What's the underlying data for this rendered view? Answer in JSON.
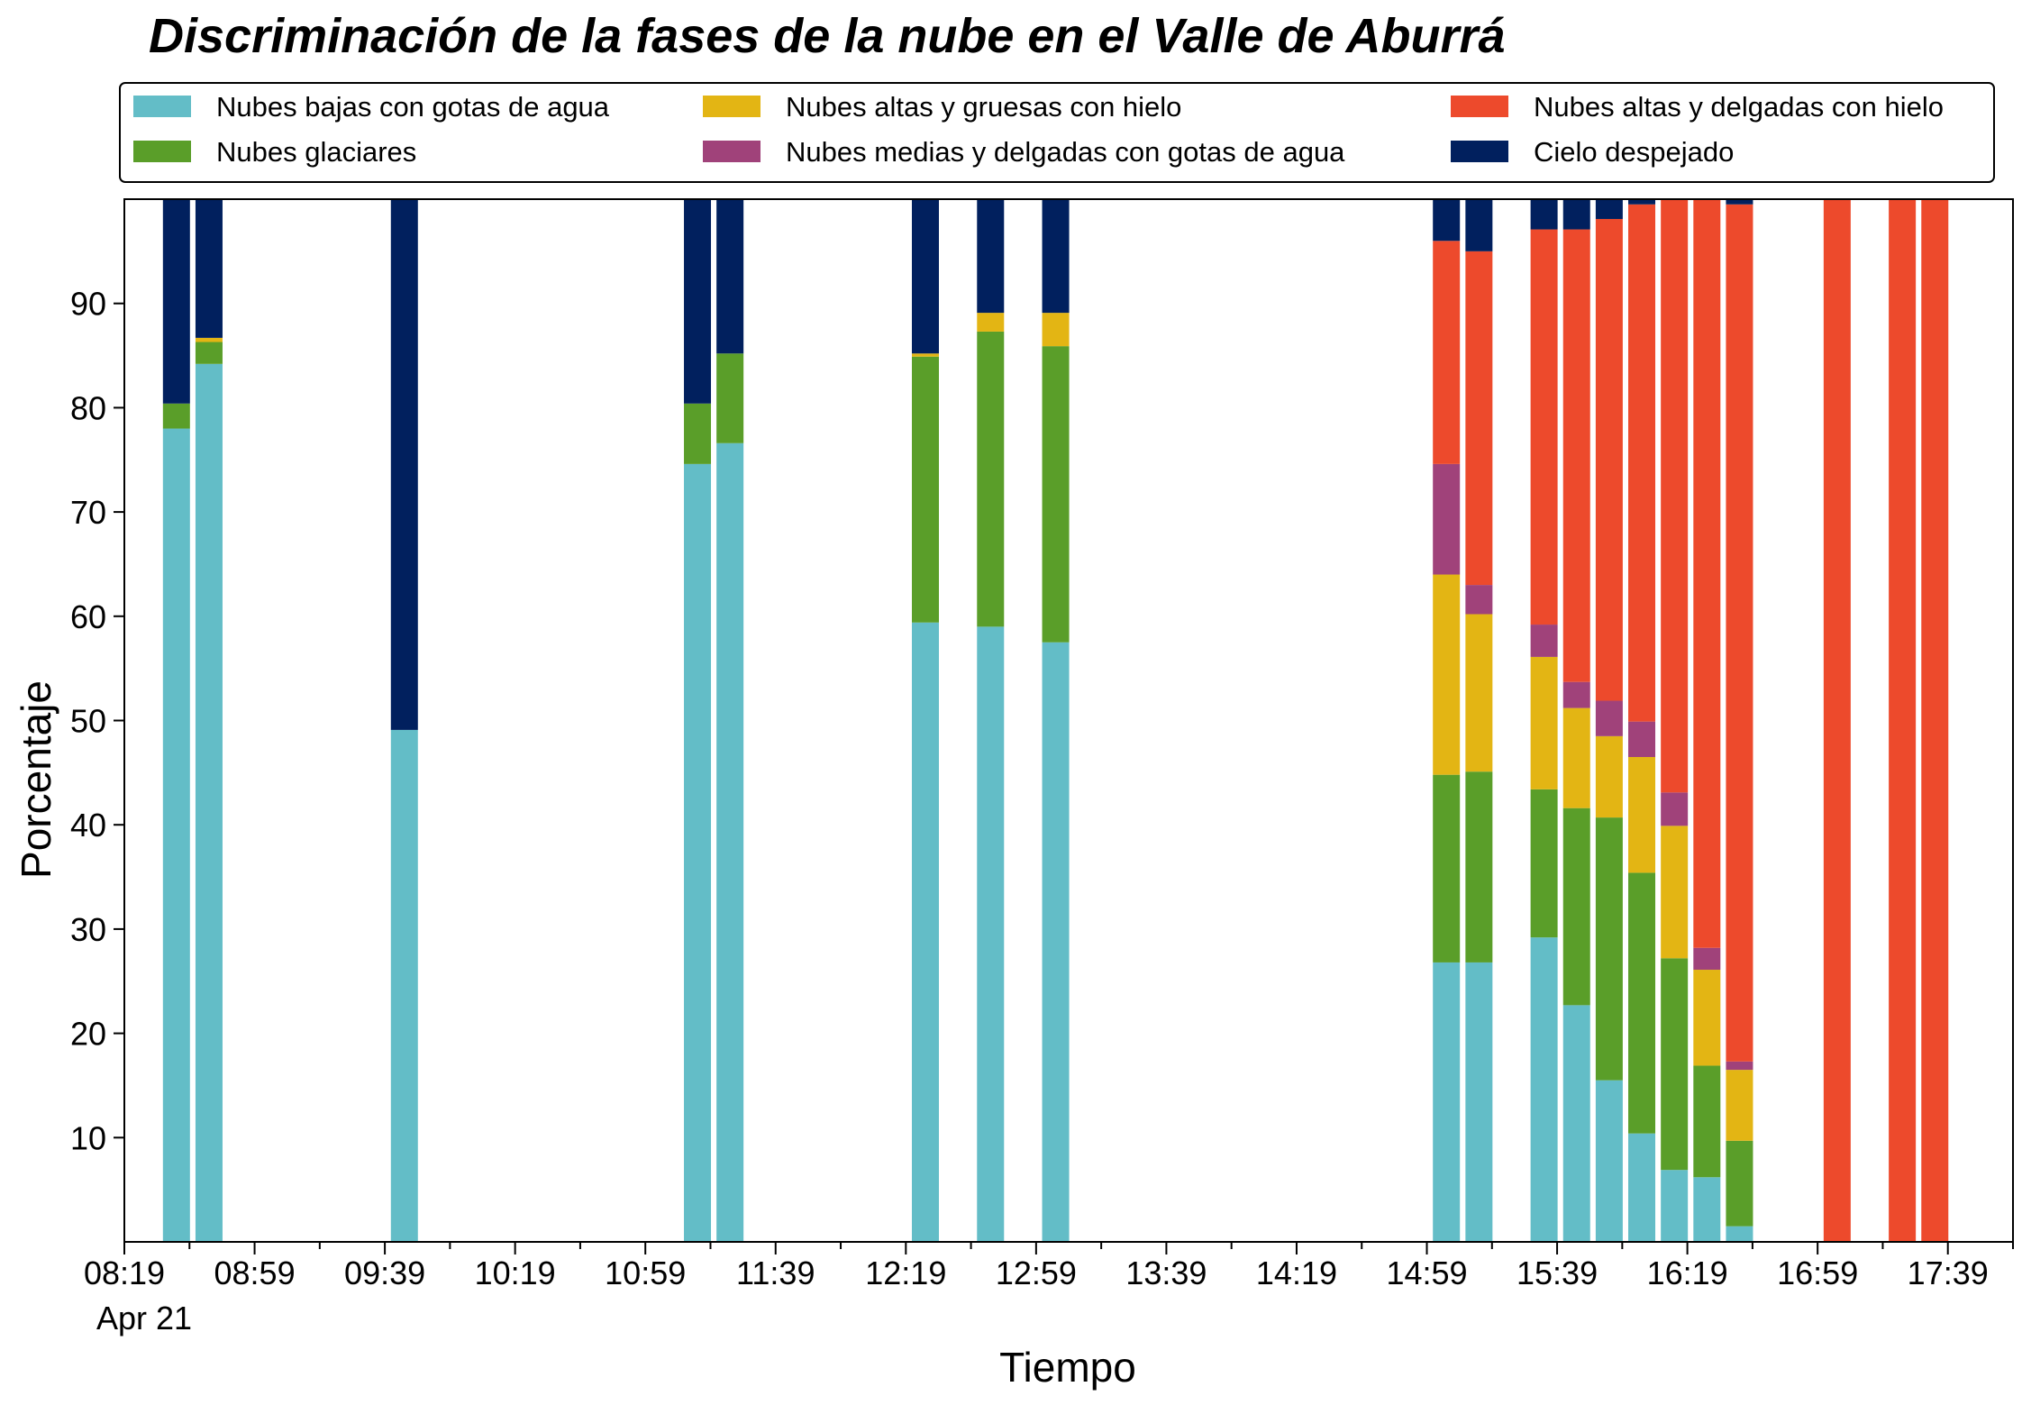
{
  "chart_data": {
    "type": "bar",
    "stacked": true,
    "title": "Discriminación de la fases de la nube en el Valle de Aburrá",
    "xlabel": "Tiempo",
    "ylabel": "Porcentaje",
    "ylim": [
      0,
      100
    ],
    "y_ticks": [
      10,
      20,
      30,
      40,
      50,
      60,
      70,
      80,
      90
    ],
    "x_date_label": "Apr 21",
    "x_range": [
      "08:19",
      "17:59"
    ],
    "x_tick_labels": [
      "08:19",
      "08:59",
      "09:39",
      "10:19",
      "10:59",
      "11:39",
      "12:19",
      "12:59",
      "13:39",
      "14:19",
      "14:59",
      "15:39",
      "16:19",
      "16:59",
      "17:39"
    ],
    "grid": false,
    "legend_position": "top",
    "series": [
      {
        "name": "Nubes bajas con gotas de agua",
        "color": "#63bdc7"
      },
      {
        "name": "Nubes glaciares",
        "color": "#5a9e29"
      },
      {
        "name": "Nubes altas y gruesas con hielo",
        "color": "#e3b514"
      },
      {
        "name": "Nubes medias y delgadas con gotas de agua",
        "color": "#a0427a"
      },
      {
        "name": "Nubes altas y delgadas con hielo",
        "color": "#ed4a2c"
      },
      {
        "name": "Cielo despejado",
        "color": "#01205e"
      }
    ],
    "bars": [
      {
        "x": "08:35",
        "values": [
          78,
          2.4,
          0,
          0,
          0,
          19.6
        ]
      },
      {
        "x": "08:45",
        "values": [
          84.2,
          2.1,
          0.4,
          0,
          0,
          13.3
        ]
      },
      {
        "x": "09:45",
        "values": [
          49.1,
          0,
          0,
          0,
          0,
          50.9
        ]
      },
      {
        "x": "11:15",
        "values": [
          74.6,
          5.8,
          0,
          0,
          0,
          19.6
        ]
      },
      {
        "x": "11:25",
        "values": [
          76.6,
          8.6,
          0,
          0,
          0,
          14.8
        ]
      },
      {
        "x": "12:25",
        "values": [
          59.4,
          25.5,
          0.3,
          0,
          0,
          14.8
        ]
      },
      {
        "x": "12:45",
        "values": [
          59.0,
          28.3,
          1.8,
          0,
          0,
          10.9
        ]
      },
      {
        "x": "13:05",
        "values": [
          57.5,
          28.4,
          3.2,
          0,
          0,
          10.9
        ]
      },
      {
        "x": "15:05",
        "values": [
          26.8,
          18.0,
          19.2,
          10.6,
          21.4,
          4.0
        ]
      },
      {
        "x": "15:15",
        "values": [
          26.8,
          18.3,
          15.1,
          2.8,
          32.0,
          5.0
        ]
      },
      {
        "x": "15:35",
        "values": [
          29.2,
          14.2,
          12.7,
          3.1,
          37.9,
          2.9
        ]
      },
      {
        "x": "15:45",
        "values": [
          22.7,
          18.9,
          9.6,
          2.5,
          43.4,
          2.9
        ]
      },
      {
        "x": "15:55",
        "values": [
          15.5,
          25.2,
          7.8,
          3.4,
          46.2,
          1.9
        ]
      },
      {
        "x": "16:05",
        "values": [
          10.4,
          25.0,
          11.1,
          3.4,
          49.6,
          0.5
        ]
      },
      {
        "x": "16:15",
        "values": [
          6.9,
          20.3,
          12.7,
          3.2,
          56.9,
          0
        ]
      },
      {
        "x": "16:25",
        "values": [
          6.2,
          10.7,
          9.2,
          2.1,
          71.8,
          0
        ]
      },
      {
        "x": "16:35",
        "values": [
          1.5,
          8.2,
          6.8,
          0.8,
          82.2,
          0.5
        ]
      },
      {
        "x": "17:05",
        "values": [
          0,
          0,
          0,
          0,
          100,
          0
        ]
      },
      {
        "x": "17:25",
        "values": [
          0,
          0,
          0,
          0,
          100,
          0
        ]
      },
      {
        "x": "17:35",
        "values": [
          0,
          0,
          0,
          0,
          100,
          0
        ]
      }
    ]
  }
}
